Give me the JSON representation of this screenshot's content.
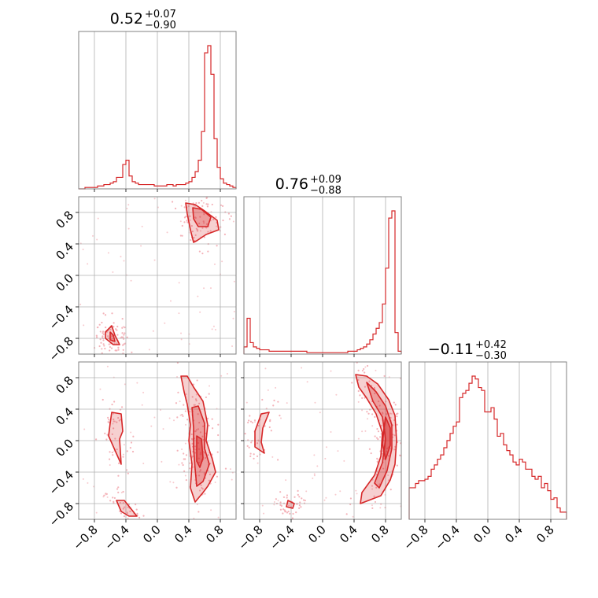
{
  "chart_data": {
    "type": "corner",
    "color": "#d62728",
    "point_color": "#f4b3b9",
    "parameters": [
      {
        "title_value": "0.52",
        "title_plus": "+0.07",
        "title_minus": "−0.90"
      },
      {
        "title_value": "0.76",
        "title_plus": "+0.09",
        "title_minus": "−0.88"
      },
      {
        "title_value": "−0.11",
        "title_plus": "+0.42",
        "title_minus": "−0.30"
      }
    ],
    "axis_range": [
      -1.0,
      1.0
    ],
    "ticks": [
      -0.8,
      -0.4,
      0.0,
      0.4,
      0.8
    ],
    "tick_labels": [
      "−0.8",
      "−0.4",
      "0.0",
      "0.4",
      "0.8"
    ],
    "grid": true,
    "histograms": [
      {
        "name": "p0",
        "counts": [
          0,
          0,
          1,
          1,
          1,
          1,
          2,
          2,
          3,
          3,
          4,
          5,
          8,
          8,
          17,
          20,
          9,
          5,
          4,
          3,
          3,
          3,
          3,
          3,
          2,
          2,
          2,
          2,
          3,
          3,
          2,
          3,
          3,
          3,
          4,
          5,
          8,
          12,
          20,
          40,
          95,
          100,
          80,
          35,
          15,
          7,
          4,
          3,
          2,
          1
        ]
      },
      {
        "name": "p1",
        "counts": [
          5,
          25,
          8,
          5,
          4,
          3,
          3,
          3,
          2,
          2,
          2,
          2,
          2,
          2,
          2,
          2,
          2,
          2,
          2,
          2,
          1,
          1,
          1,
          1,
          1,
          1,
          1,
          1,
          1,
          1,
          1,
          1,
          1,
          2,
          2,
          2,
          3,
          4,
          5,
          7,
          10,
          14,
          18,
          22,
          35,
          60,
          95,
          100,
          15,
          2
        ]
      },
      {
        "name": "p2",
        "counts": [
          22,
          22,
          25,
          27,
          27,
          28,
          30,
          35,
          38,
          42,
          45,
          50,
          55,
          60,
          65,
          68,
          85,
          88,
          90,
          95,
          100,
          98,
          92,
          90,
          75,
          75,
          78,
          70,
          58,
          60,
          52,
          48,
          45,
          40,
          38,
          42,
          40,
          35,
          35,
          30,
          28,
          30,
          22,
          25,
          20,
          14,
          15,
          8,
          5,
          5
        ]
      }
    ],
    "contours": [
      {
        "x_param": 0,
        "y_param": 1,
        "regions": [
          {
            "level": 1,
            "points": [
              [
                0.36,
                0.92
              ],
              [
                0.48,
                0.9
              ],
              [
                0.6,
                0.82
              ],
              [
                0.76,
                0.7
              ],
              [
                0.78,
                0.58
              ],
              [
                0.62,
                0.52
              ],
              [
                0.5,
                0.44
              ],
              [
                0.46,
                0.42
              ],
              [
                0.42,
                0.58
              ],
              [
                0.38,
                0.78
              ]
            ]
          },
          {
            "level": 2,
            "points": [
              [
                0.45,
                0.86
              ],
              [
                0.56,
                0.84
              ],
              [
                0.68,
                0.74
              ],
              [
                0.64,
                0.62
              ],
              [
                0.52,
                0.62
              ],
              [
                0.46,
                0.72
              ]
            ]
          },
          {
            "level": 1,
            "points": [
              [
                -0.66,
                -0.72
              ],
              [
                -0.58,
                -0.64
              ],
              [
                -0.54,
                -0.76
              ],
              [
                -0.48,
                -0.88
              ],
              [
                -0.56,
                -0.88
              ],
              [
                -0.66,
                -0.8
              ]
            ]
          },
          {
            "level": 2,
            "points": [
              [
                -0.6,
                -0.72
              ],
              [
                -0.56,
                -0.76
              ],
              [
                -0.54,
                -0.84
              ],
              [
                -0.6,
                -0.82
              ]
            ]
          }
        ]
      },
      {
        "x_param": 0,
        "y_param": 2,
        "regions": [
          {
            "level": 1,
            "points": [
              [
                0.3,
                0.82
              ],
              [
                0.38,
                0.82
              ],
              [
                0.46,
                0.68
              ],
              [
                0.58,
                0.5
              ],
              [
                0.64,
                0.2
              ],
              [
                0.62,
                0.0
              ],
              [
                0.7,
                -0.24
              ],
              [
                0.74,
                -0.4
              ],
              [
                0.64,
                -0.58
              ],
              [
                0.58,
                -0.66
              ],
              [
                0.48,
                -0.78
              ],
              [
                0.42,
                -0.6
              ],
              [
                0.44,
                -0.3
              ],
              [
                0.4,
                0.0
              ],
              [
                0.42,
                0.2
              ],
              [
                0.38,
                0.46
              ],
              [
                0.34,
                0.62
              ]
            ]
          },
          {
            "level": 2,
            "points": [
              [
                0.44,
                0.42
              ],
              [
                0.52,
                0.44
              ],
              [
                0.6,
                0.22
              ],
              [
                0.6,
                -0.1
              ],
              [
                0.66,
                -0.3
              ],
              [
                0.58,
                -0.52
              ],
              [
                0.5,
                -0.58
              ],
              [
                0.48,
                -0.36
              ],
              [
                0.46,
                -0.1
              ],
              [
                0.46,
                0.16
              ]
            ]
          },
          {
            "level": 3,
            "points": [
              [
                0.5,
                0.06
              ],
              [
                0.56,
                0.02
              ],
              [
                0.58,
                -0.22
              ],
              [
                0.54,
                -0.34
              ],
              [
                0.5,
                -0.26
              ],
              [
                0.5,
                -0.08
              ]
            ]
          },
          {
            "level": 1,
            "points": [
              [
                -0.58,
                0.36
              ],
              [
                -0.46,
                0.34
              ],
              [
                -0.44,
                0.12
              ],
              [
                -0.48,
                0.02
              ],
              [
                -0.46,
                -0.3
              ],
              [
                -0.54,
                -0.12
              ],
              [
                -0.62,
                0.06
              ],
              [
                -0.6,
                0.22
              ]
            ]
          },
          {
            "level": 1,
            "points": [
              [
                -0.52,
                -0.76
              ],
              [
                -0.42,
                -0.76
              ],
              [
                -0.34,
                -0.86
              ],
              [
                -0.26,
                -0.96
              ],
              [
                -0.36,
                -0.96
              ],
              [
                -0.46,
                -0.9
              ]
            ]
          }
        ]
      },
      {
        "x_param": 1,
        "y_param": 2,
        "regions": [
          {
            "level": 1,
            "points": [
              [
                0.42,
                0.84
              ],
              [
                0.56,
                0.82
              ],
              [
                0.7,
                0.72
              ],
              [
                0.84,
                0.52
              ],
              [
                0.92,
                0.32
              ],
              [
                0.94,
                0.0
              ],
              [
                0.92,
                -0.3
              ],
              [
                0.86,
                -0.5
              ],
              [
                0.74,
                -0.7
              ],
              [
                0.48,
                -0.8
              ],
              [
                0.5,
                -0.66
              ],
              [
                0.66,
                -0.44
              ],
              [
                0.74,
                -0.2
              ],
              [
                0.76,
                0.1
              ],
              [
                0.68,
                0.34
              ],
              [
                0.56,
                0.54
              ],
              [
                0.46,
                0.68
              ]
            ]
          },
          {
            "level": 2,
            "points": [
              [
                0.56,
                0.74
              ],
              [
                0.68,
                0.62
              ],
              [
                0.8,
                0.44
              ],
              [
                0.88,
                0.2
              ],
              [
                0.88,
                -0.1
              ],
              [
                0.82,
                -0.38
              ],
              [
                0.72,
                -0.6
              ],
              [
                0.66,
                -0.54
              ],
              [
                0.76,
                -0.28
              ],
              [
                0.8,
                0.02
              ],
              [
                0.76,
                0.3
              ],
              [
                0.64,
                0.5
              ]
            ]
          },
          {
            "level": 3,
            "points": [
              [
                0.8,
                0.3
              ],
              [
                0.86,
                0.16
              ],
              [
                0.86,
                -0.06
              ],
              [
                0.8,
                -0.24
              ],
              [
                0.76,
                -0.04
              ],
              [
                0.78,
                0.16
              ]
            ]
          },
          {
            "level": 1,
            "points": [
              [
                -0.78,
                0.34
              ],
              [
                -0.68,
                0.36
              ],
              [
                -0.76,
                0.16
              ],
              [
                -0.78,
                -0.02
              ],
              [
                -0.74,
                -0.16
              ],
              [
                -0.86,
                -0.08
              ],
              [
                -0.86,
                0.12
              ]
            ]
          },
          {
            "level": 1,
            "points": [
              [
                -0.44,
                -0.76
              ],
              [
                -0.36,
                -0.8
              ],
              [
                -0.38,
                -0.86
              ],
              [
                -0.46,
                -0.84
              ]
            ]
          }
        ]
      }
    ]
  }
}
